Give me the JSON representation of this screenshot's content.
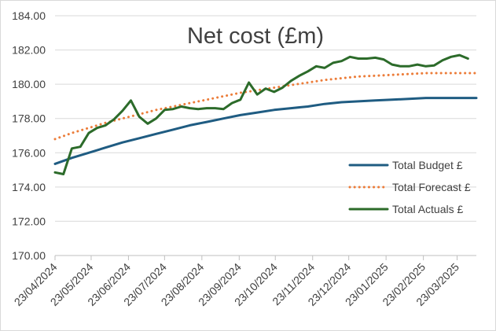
{
  "chart_data": {
    "type": "line",
    "title": "Net cost (£m)",
    "xlabel": "",
    "ylabel": "",
    "ylim": [
      170,
      184
    ],
    "yticks": [
      "170.00",
      "172.00",
      "174.00",
      "176.00",
      "178.00",
      "180.00",
      "182.00",
      "184.00"
    ],
    "xticks": [
      "23/04/2024",
      "23/05/2024",
      "23/06/2024",
      "23/07/2024",
      "23/08/2024",
      "23/09/2024",
      "23/10/2024",
      "23/11/2024",
      "23/12/2024",
      "23/01/2025",
      "23/02/2025",
      "23/03/2025"
    ],
    "x_range": [
      "2024-04-23",
      "2025-04-08"
    ],
    "grid": true,
    "legend_position": "right",
    "series": [
      {
        "name": "Total Budget £",
        "color": "#1f5c82",
        "style": "solid",
        "points": [
          [
            "2024-04-23",
            175.35
          ],
          [
            "2024-05-07",
            175.7
          ],
          [
            "2024-05-21",
            176.0
          ],
          [
            "2024-06-04",
            176.3
          ],
          [
            "2024-06-18",
            176.6
          ],
          [
            "2024-07-02",
            176.85
          ],
          [
            "2024-07-16",
            177.1
          ],
          [
            "2024-07-30",
            177.35
          ],
          [
            "2024-08-13",
            177.6
          ],
          [
            "2024-08-27",
            177.8
          ],
          [
            "2024-09-10",
            178.0
          ],
          [
            "2024-09-24",
            178.2
          ],
          [
            "2024-10-08",
            178.35
          ],
          [
            "2024-10-22",
            178.5
          ],
          [
            "2024-11-05",
            178.6
          ],
          [
            "2024-11-19",
            178.7
          ],
          [
            "2024-12-03",
            178.85
          ],
          [
            "2024-12-17",
            178.95
          ],
          [
            "2024-12-31",
            179.0
          ],
          [
            "2025-01-14",
            179.05
          ],
          [
            "2025-01-28",
            179.1
          ],
          [
            "2025-02-11",
            179.15
          ],
          [
            "2025-02-25",
            179.2
          ],
          [
            "2025-03-11",
            179.2
          ],
          [
            "2025-03-25",
            179.2
          ],
          [
            "2025-04-08",
            179.2
          ]
        ]
      },
      {
        "name": "Total Forecast £",
        "color": "#ec7d3a",
        "style": "dotted",
        "points": [
          [
            "2024-04-23",
            176.8
          ],
          [
            "2024-05-07",
            177.15
          ],
          [
            "2024-05-21",
            177.45
          ],
          [
            "2024-06-04",
            177.75
          ],
          [
            "2024-06-18",
            178.0
          ],
          [
            "2024-07-02",
            178.25
          ],
          [
            "2024-07-16",
            178.5
          ],
          [
            "2024-07-30",
            178.7
          ],
          [
            "2024-08-13",
            178.9
          ],
          [
            "2024-08-27",
            179.1
          ],
          [
            "2024-09-10",
            179.3
          ],
          [
            "2024-09-24",
            179.5
          ],
          [
            "2024-10-08",
            179.65
          ],
          [
            "2024-10-22",
            179.8
          ],
          [
            "2024-11-05",
            179.95
          ],
          [
            "2024-11-19",
            180.1
          ],
          [
            "2024-12-03",
            180.25
          ],
          [
            "2024-12-17",
            180.35
          ],
          [
            "2024-12-31",
            180.45
          ],
          [
            "2025-01-14",
            180.5
          ],
          [
            "2025-01-28",
            180.55
          ],
          [
            "2025-02-11",
            180.6
          ],
          [
            "2025-02-25",
            180.65
          ],
          [
            "2025-03-11",
            180.65
          ],
          [
            "2025-03-25",
            180.65
          ],
          [
            "2025-04-08",
            180.65
          ]
        ]
      },
      {
        "name": "Total Actuals £",
        "color": "#2c6b2a",
        "style": "solid",
        "points": [
          [
            "2024-04-23",
            174.85
          ],
          [
            "2024-04-30",
            174.75
          ],
          [
            "2024-05-07",
            176.25
          ],
          [
            "2024-05-14",
            176.35
          ],
          [
            "2024-05-21",
            177.15
          ],
          [
            "2024-05-28",
            177.45
          ],
          [
            "2024-06-04",
            177.6
          ],
          [
            "2024-06-11",
            177.95
          ],
          [
            "2024-06-18",
            178.45
          ],
          [
            "2024-06-25",
            179.05
          ],
          [
            "2024-07-02",
            178.1
          ],
          [
            "2024-07-09",
            177.7
          ],
          [
            "2024-07-16",
            178.0
          ],
          [
            "2024-07-23",
            178.5
          ],
          [
            "2024-07-30",
            178.55
          ],
          [
            "2024-08-06",
            178.7
          ],
          [
            "2024-08-13",
            178.6
          ],
          [
            "2024-08-20",
            178.55
          ],
          [
            "2024-08-27",
            178.6
          ],
          [
            "2024-09-03",
            178.6
          ],
          [
            "2024-09-10",
            178.55
          ],
          [
            "2024-09-17",
            178.9
          ],
          [
            "2024-09-24",
            179.1
          ],
          [
            "2024-10-01",
            180.1
          ],
          [
            "2024-10-08",
            179.4
          ],
          [
            "2024-10-15",
            179.75
          ],
          [
            "2024-10-22",
            179.55
          ],
          [
            "2024-10-29",
            179.8
          ],
          [
            "2024-11-05",
            180.2
          ],
          [
            "2024-11-12",
            180.5
          ],
          [
            "2024-11-19",
            180.75
          ],
          [
            "2024-11-26",
            181.05
          ],
          [
            "2024-12-03",
            180.95
          ],
          [
            "2024-12-10",
            181.25
          ],
          [
            "2024-12-17",
            181.35
          ],
          [
            "2024-12-24",
            181.6
          ],
          [
            "2024-12-31",
            181.5
          ],
          [
            "2025-01-07",
            181.5
          ],
          [
            "2025-01-14",
            181.55
          ],
          [
            "2025-01-21",
            181.45
          ],
          [
            "2025-01-28",
            181.15
          ],
          [
            "2025-02-04",
            181.05
          ],
          [
            "2025-02-11",
            181.05
          ],
          [
            "2025-02-18",
            181.15
          ],
          [
            "2025-02-25",
            181.05
          ],
          [
            "2025-03-04",
            181.1
          ],
          [
            "2025-03-11",
            181.4
          ],
          [
            "2025-03-18",
            181.6
          ],
          [
            "2025-03-25",
            181.7
          ],
          [
            "2025-04-01",
            181.5
          ]
        ]
      }
    ]
  }
}
